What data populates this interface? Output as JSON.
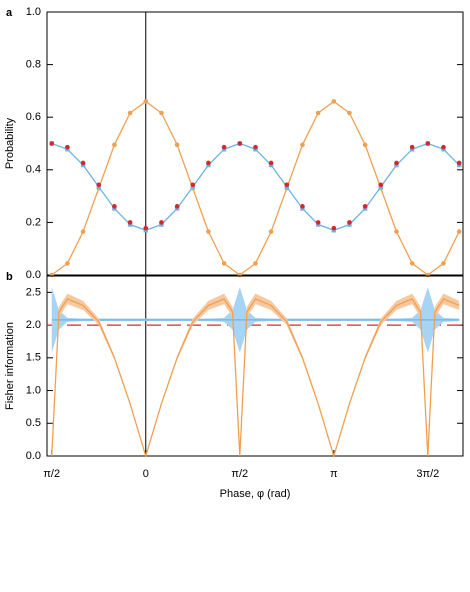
{
  "chart_data": [
    {
      "type": "line",
      "panel_label": "a",
      "ylabel": "Probability",
      "xlim": [
        -1.65,
        5.3
      ],
      "ylim": [
        0,
        1
      ],
      "yticks": [
        {
          "value": 0,
          "label": "0.0"
        },
        0.2,
        0.4,
        0.6,
        0.8,
        {
          "value": 1,
          "label": "1.0"
        }
      ],
      "x": [
        -1.571,
        -1.309,
        -1.047,
        -0.785,
        -0.524,
        -0.262,
        0,
        0.262,
        0.524,
        0.785,
        1.047,
        1.309,
        1.571,
        1.833,
        2.094,
        2.356,
        2.618,
        2.88,
        3.142,
        3.403,
        3.665,
        3.927,
        4.189,
        4.451,
        4.712,
        4.974,
        5.236
      ],
      "series": [
        {
          "color": "#f0a050",
          "style": "line+markers",
          "marker": "circle",
          "values": [
            0,
            0.044,
            0.165,
            0.33,
            0.495,
            0.616,
            0.66,
            0.616,
            0.495,
            0.33,
            0.165,
            0.044,
            0,
            0.044,
            0.165,
            0.33,
            0.495,
            0.616,
            0.66,
            0.616,
            0.495,
            0.33,
            0.165,
            0.044,
            0,
            0.044,
            0.165
          ]
        },
        {
          "color": "#6cb4e4",
          "style": "line+markers",
          "marker": "square",
          "values": [
            0.5,
            0.478,
            0.418,
            0.335,
            0.253,
            0.192,
            0.17,
            0.192,
            0.253,
            0.335,
            0.418,
            0.478,
            0.5,
            0.478,
            0.418,
            0.335,
            0.253,
            0.192,
            0.17,
            0.192,
            0.253,
            0.335,
            0.418,
            0.478,
            0.5,
            0.478,
            0.418
          ]
        },
        {
          "color": "#d6282c",
          "style": "markers",
          "marker": "circle",
          "values": [
            0.5,
            0.486,
            0.426,
            0.343,
            0.261,
            0.2,
            0.178,
            0.2,
            0.261,
            0.343,
            0.426,
            0.486,
            0.5,
            0.486,
            0.426,
            0.343,
            0.261,
            0.2,
            0.178,
            0.2,
            0.261,
            0.343,
            0.426,
            0.486,
            0.5,
            0.486,
            0.426
          ]
        }
      ]
    },
    {
      "type": "line",
      "panel_label": "b",
      "ylabel": "Fisher information",
      "xlabel": "Phase,  φ (rad)",
      "xlim": [
        -1.65,
        5.3
      ],
      "ylim": [
        0,
        2.75
      ],
      "xticks": [
        {
          "value": -1.5708,
          "label": "π/2"
        },
        0,
        {
          "value": 1.5708,
          "label": "π/2"
        },
        {
          "value": 3.1416,
          "label": "π"
        },
        {
          "value": 4.7124,
          "label": "3π/2"
        }
      ],
      "yticks": [
        {
          "value": 0,
          "label": "0.0"
        },
        0.5,
        {
          "value": 1,
          "label": "1.0"
        },
        1.5,
        {
          "value": 2,
          "label": "2.0"
        },
        2.5
      ],
      "x": [
        -1.571,
        -1.45,
        -1.309,
        -1.047,
        -0.785,
        -0.524,
        -0.262,
        0,
        0.262,
        0.524,
        0.785,
        1.047,
        1.309,
        1.45,
        1.571,
        1.69,
        1.833,
        2.094,
        2.356,
        2.618,
        2.88,
        3.142,
        3.403,
        3.665,
        3.927,
        4.189,
        4.451,
        4.59,
        4.712,
        4.83,
        4.974,
        5.236
      ],
      "series": [
        {
          "color": "#6cb4e4",
          "band_color": "#a8d4f4",
          "style": "line",
          "values": [
            2.08,
            2.08,
            2.08,
            2.08,
            2.08,
            2.08,
            2.08,
            2.08,
            2.08,
            2.08,
            2.08,
            2.08,
            2.08,
            2.08,
            2.08,
            2.08,
            2.08,
            2.08,
            2.08,
            2.08,
            2.08,
            2.08,
            2.08,
            2.08,
            2.08,
            2.08,
            2.08,
            2.08,
            2.08,
            2.08,
            2.08,
            2.08
          ],
          "errors": [
            0.5,
            0.15,
            0.03,
            0.02,
            0.02,
            0.02,
            0.02,
            0.02,
            0.02,
            0.02,
            0.02,
            0.02,
            0.03,
            0.15,
            0.5,
            0.15,
            0.03,
            0.02,
            0.02,
            0.02,
            0.02,
            0.02,
            0.02,
            0.02,
            0.02,
            0.02,
            0.03,
            0.15,
            0.5,
            0.15,
            0.03,
            0.02
          ]
        },
        {
          "color": "#f0a050",
          "band_color": "#f8c8a0",
          "style": "line",
          "values": [
            0,
            2.2,
            2.4,
            2.3,
            2.05,
            1.5,
            0.8,
            0,
            0.8,
            1.5,
            2.05,
            2.3,
            2.4,
            2.2,
            0,
            2.2,
            2.4,
            2.3,
            2.05,
            1.5,
            0.8,
            0,
            0.8,
            1.5,
            2.05,
            2.3,
            2.4,
            2.2,
            0,
            2.2,
            2.4,
            2.3
          ],
          "errors": [
            0,
            0.08,
            0.08,
            0.07,
            0.05,
            0.03,
            0.02,
            0,
            0.02,
            0.03,
            0.05,
            0.07,
            0.08,
            0.08,
            0,
            0.08,
            0.08,
            0.07,
            0.05,
            0.03,
            0.02,
            0,
            0.02,
            0.03,
            0.05,
            0.07,
            0.08,
            0.08,
            0,
            0.08,
            0.08,
            0.07
          ]
        }
      ],
      "reference_line": {
        "value": 2,
        "color": "#d6282c",
        "dashed": true
      }
    }
  ]
}
